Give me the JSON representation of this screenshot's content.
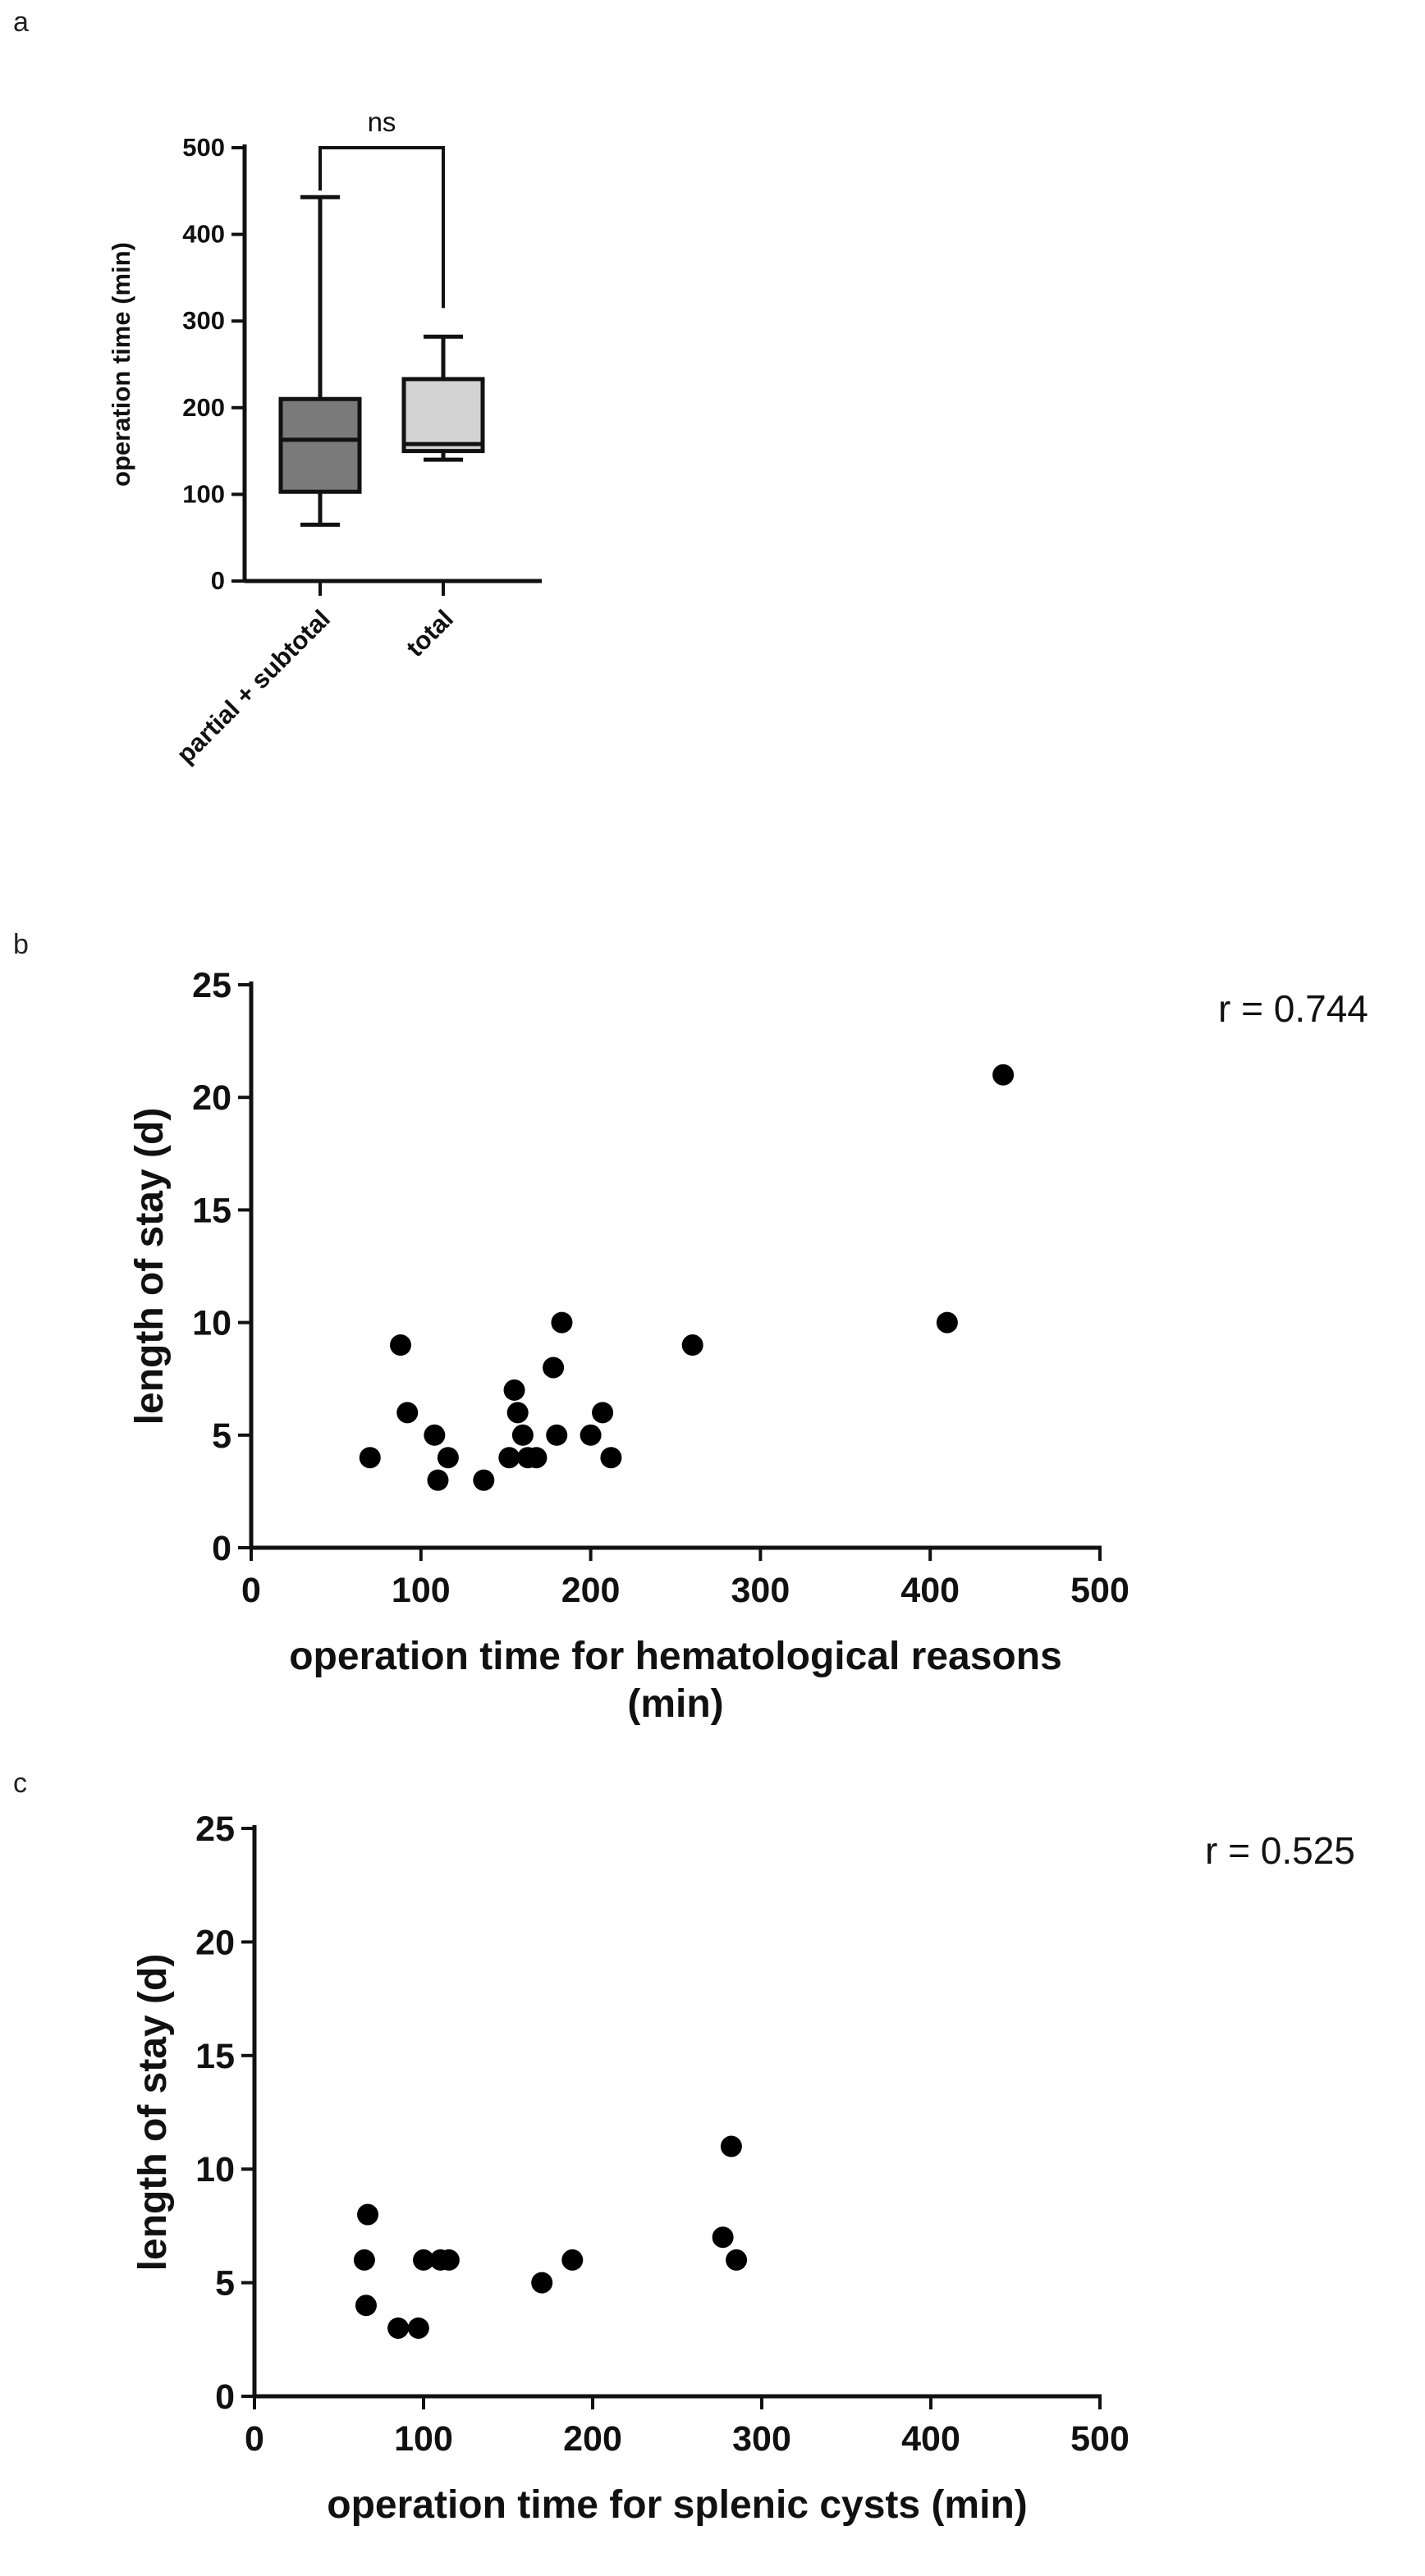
{
  "panels": {
    "a": "a",
    "b": "b",
    "c": "c"
  },
  "chart_data": [
    {
      "id": "a",
      "type": "box",
      "title": "",
      "ylabel": "operation time (min)",
      "ylim": [
        0,
        500
      ],
      "yticks": [
        0,
        100,
        200,
        300,
        400,
        500
      ],
      "categories": [
        "partial + subtotal",
        "total"
      ],
      "boxes": [
        {
          "name": "partial + subtotal",
          "min": 65,
          "q1": 103,
          "median": 163,
          "q3": 210,
          "max": 443,
          "color": "#7a7a7a"
        },
        {
          "name": "total",
          "min": 140,
          "q1": 150,
          "median": 158,
          "q3": 233,
          "max": 282,
          "color": "#d3d3d3"
        }
      ],
      "significance": {
        "label": "ns",
        "bracket_y": 500,
        "drop_left": 443,
        "drop_right": 315
      }
    },
    {
      "id": "b",
      "type": "scatter",
      "xlabel_lines": [
        "operation time for hematological reasons",
        "(min)"
      ],
      "ylabel": "length of stay (d)",
      "xlim": [
        0,
        500
      ],
      "ylim": [
        0,
        25
      ],
      "xticks": [
        0,
        100,
        200,
        300,
        400,
        500
      ],
      "yticks": [
        0,
        5,
        10,
        15,
        20,
        25
      ],
      "annotation": "r = 0.744",
      "points": [
        {
          "x": 70,
          "y": 4
        },
        {
          "x": 88,
          "y": 9
        },
        {
          "x": 92,
          "y": 6
        },
        {
          "x": 108,
          "y": 5
        },
        {
          "x": 110,
          "y": 3
        },
        {
          "x": 116,
          "y": 4
        },
        {
          "x": 137,
          "y": 3
        },
        {
          "x": 152,
          "y": 4
        },
        {
          "x": 155,
          "y": 7
        },
        {
          "x": 157,
          "y": 6
        },
        {
          "x": 160,
          "y": 5
        },
        {
          "x": 163,
          "y": 4
        },
        {
          "x": 168,
          "y": 4
        },
        {
          "x": 178,
          "y": 8
        },
        {
          "x": 180,
          "y": 5
        },
        {
          "x": 183,
          "y": 10
        },
        {
          "x": 200,
          "y": 5
        },
        {
          "x": 207,
          "y": 6
        },
        {
          "x": 212,
          "y": 4
        },
        {
          "x": 260,
          "y": 9
        },
        {
          "x": 410,
          "y": 10
        },
        {
          "x": 443,
          "y": 21
        }
      ]
    },
    {
      "id": "c",
      "type": "scatter",
      "xlabel_lines": [
        "operation time for splenic cysts (min)"
      ],
      "ylabel": "length of stay (d)",
      "xlim": [
        0,
        500
      ],
      "ylim": [
        0,
        25
      ],
      "xticks": [
        0,
        100,
        200,
        300,
        400,
        500
      ],
      "yticks": [
        0,
        5,
        10,
        15,
        20,
        25
      ],
      "annotation": "r = 0.525",
      "points": [
        {
          "x": 65,
          "y": 6
        },
        {
          "x": 66,
          "y": 4
        },
        {
          "x": 67,
          "y": 8
        },
        {
          "x": 85,
          "y": 3
        },
        {
          "x": 97,
          "y": 3
        },
        {
          "x": 100,
          "y": 6
        },
        {
          "x": 110,
          "y": 6
        },
        {
          "x": 115,
          "y": 6
        },
        {
          "x": 170,
          "y": 5
        },
        {
          "x": 188,
          "y": 6
        },
        {
          "x": 277,
          "y": 7
        },
        {
          "x": 282,
          "y": 11
        },
        {
          "x": 285,
          "y": 6
        }
      ]
    }
  ]
}
